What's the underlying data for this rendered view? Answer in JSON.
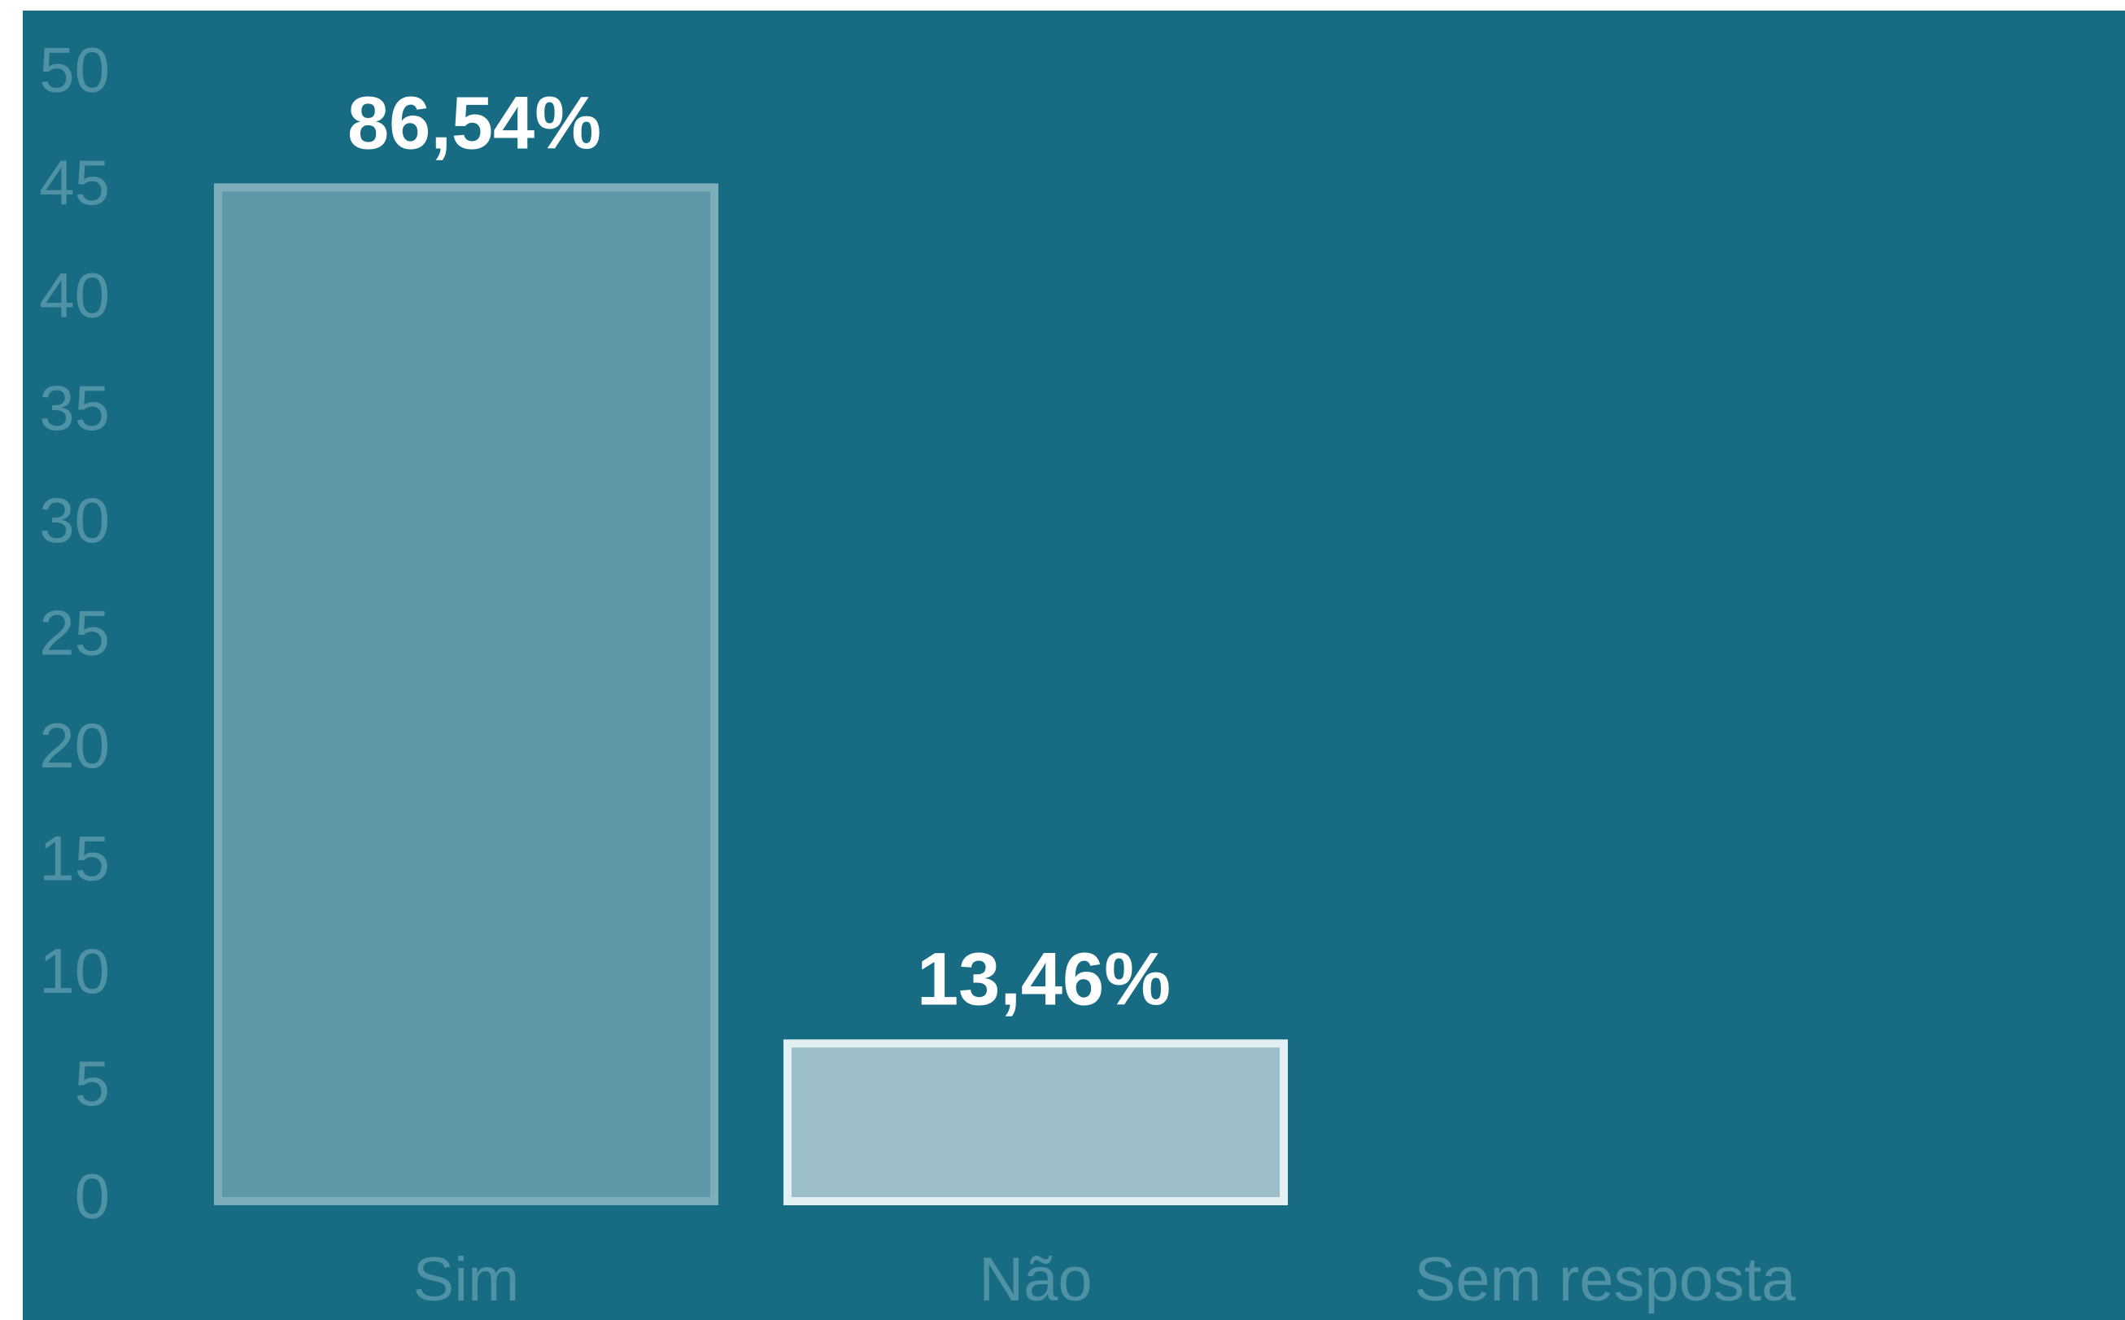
{
  "chart_data": {
    "type": "bar",
    "categories": [
      "Sim",
      "Não",
      "Sem resposta"
    ],
    "values": [
      45,
      7,
      0
    ],
    "value_labels": [
      "86,54%",
      "13,46%",
      null
    ],
    "colors": [
      "#5e98a8",
      "#9bbec8",
      "#e0eef2"
    ],
    "edge_colors": [
      "#7eadba",
      "#e2eff3",
      "#e0eef2"
    ],
    "background": "#176b82",
    "ylim": [
      0,
      50
    ],
    "yticks": [
      0,
      5,
      10,
      15,
      20,
      25,
      30,
      35,
      40,
      45,
      50
    ],
    "grid": false
  }
}
